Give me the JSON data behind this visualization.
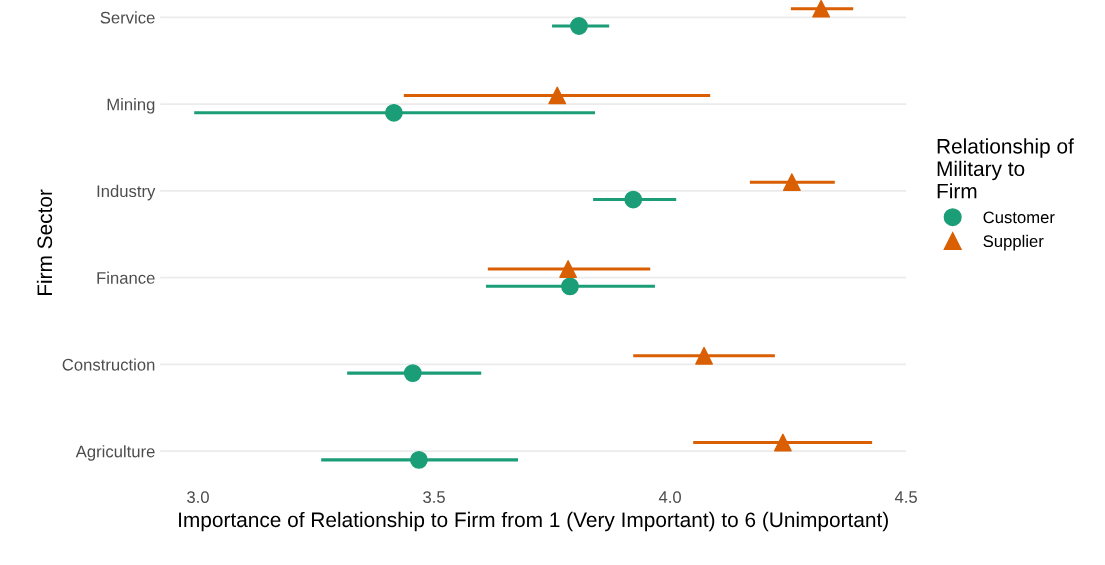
{
  "chart_data": {
    "type": "scatter",
    "orientation": "horizontal",
    "xlabel": "Importance of Relationship to Firm from 1 (Very Important) to 6 (Unimportant)",
    "ylabel": "Firm Sector",
    "legend_title": "Relationship of\nMilitary to\nFirm",
    "categories": [
      "Service",
      "Mining",
      "Industry",
      "Finance",
      "Construction",
      "Agriculture"
    ],
    "xlim": [
      2.92,
      4.5
    ],
    "xticks": [
      {
        "value": 3.0,
        "label": "3.0"
      },
      {
        "value": 3.5,
        "label": "3.5"
      },
      {
        "value": 4.0,
        "label": "4.0"
      },
      {
        "value": 4.5,
        "label": "4.5"
      }
    ],
    "grid": "y",
    "legend": "right",
    "series": [
      {
        "name": "Customer",
        "color": "#1b9e77",
        "marker": "circle",
        "values": [
          3.807,
          3.415,
          3.922,
          3.788,
          3.455,
          3.468
        ],
        "errors": [
          [
            3.75,
            3.871
          ],
          [
            2.992,
            3.841
          ],
          [
            3.837,
            4.013
          ],
          [
            3.61,
            3.968
          ],
          [
            3.316,
            3.6
          ],
          [
            3.261,
            3.678
          ]
        ]
      },
      {
        "name": "Supplier",
        "color": "#d95f02",
        "marker": "triangle",
        "values": [
          4.32,
          3.761,
          4.258,
          3.784,
          4.072,
          4.239
        ],
        "errors": [
          [
            4.256,
            4.388
          ],
          [
            3.436,
            4.085
          ],
          [
            4.169,
            4.349
          ],
          [
            3.614,
            3.958
          ],
          [
            3.922,
            4.222
          ],
          [
            4.049,
            4.428
          ]
        ]
      }
    ]
  }
}
